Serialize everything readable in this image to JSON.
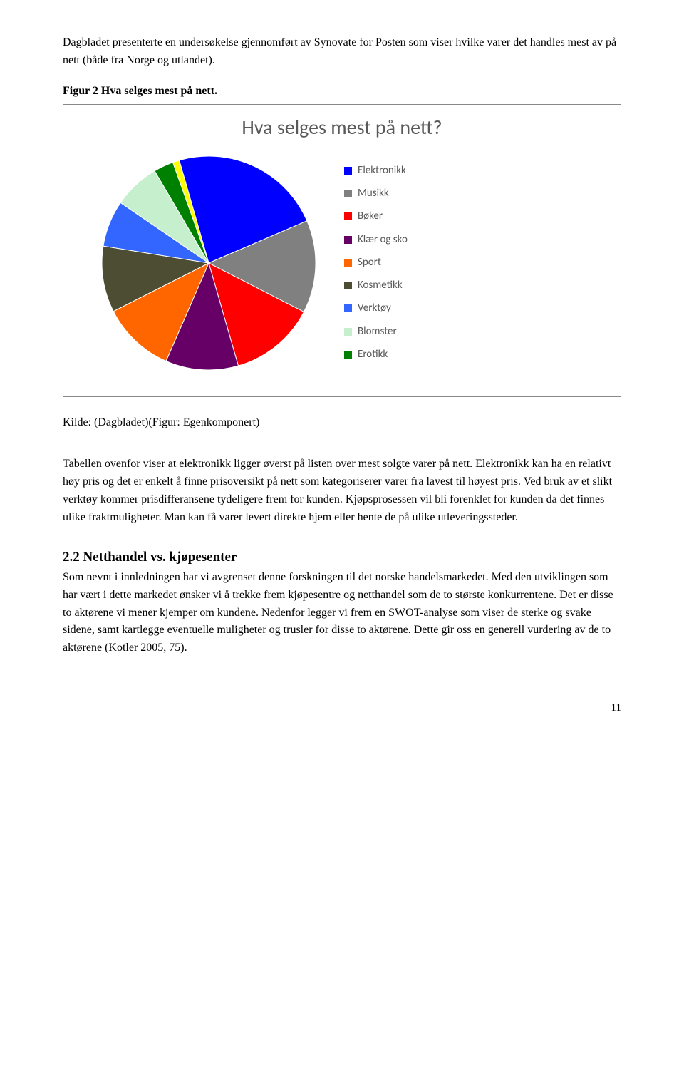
{
  "intro_paragraph": "Dagbladet presenterte en undersøkelse gjennomført av Synovate for Posten som viser hvilke varer det handles mest av på nett (både fra Norge og utlandet).",
  "figure_caption": "Figur 2 Hva selges mest på nett.",
  "chart": {
    "type": "pie",
    "title": "Hva selges mest på nett?",
    "background_color": "#ffffff",
    "border_color": "#888888",
    "title_color": "#595959",
    "title_fontsize": 28,
    "legend_fontsize": 15,
    "legend_text_color": "#595959",
    "radius": 150,
    "slices": [
      {
        "label": "Elektronikk",
        "value": 23,
        "color": "#0000ff"
      },
      {
        "label": "Musikk",
        "value": 14,
        "color": "#808080"
      },
      {
        "label": "Bøker",
        "value": 13,
        "color": "#ff0000"
      },
      {
        "label": "Klær og sko",
        "value": 11,
        "color": "#660066"
      },
      {
        "label": "Sport",
        "value": 11,
        "color": "#ff6600"
      },
      {
        "label": "Kosmetikk",
        "value": 10,
        "color": "#4d4d33"
      },
      {
        "label": "Verktøy",
        "value": 7,
        "color": "#3366ff"
      },
      {
        "label": "Blomster",
        "value": 7,
        "color": "#c6efce"
      },
      {
        "label": "Erotikk",
        "value": 3,
        "color": "#008000"
      },
      {
        "label": "",
        "value": 1,
        "color": "#ffff00"
      }
    ]
  },
  "kilde_text": "Kilde: (Dagbladet)(Figur: Egenkomponert)",
  "analysis_paragraph": "Tabellen ovenfor viser at elektronikk ligger øverst på listen over mest solgte varer på nett. Elektronikk kan ha en relativt høy pris og det er enkelt å finne prisoversikt på nett som kategoriserer varer fra lavest til høyest pris. Ved bruk av et slikt verktøy kommer prisdifferansene tydeligere frem for kunden. Kjøpsprosessen vil bli forenklet for kunden da det finnes ulike fraktmuligheter. Man kan få varer levert direkte hjem eller hente de på ulike utleveringssteder.",
  "section_heading": "2.2 Netthandel vs. kjøpesenter",
  "section_body": "Som nevnt i innledningen har vi avgrenset denne forskningen til det norske handelsmarkedet. Med den utviklingen som har vært i dette markedet ønsker vi å trekke frem kjøpesentre og netthandel som de to største konkurrentene. Det er disse to aktørene vi mener kjemper om kundene. Nedenfor legger vi frem en SWOT-analyse som viser de sterke og svake sidene, samt kartlegge eventuelle muligheter og trusler for disse to aktørene. Dette gir oss en generell vurdering av de to aktørene (Kotler 2005, 75).",
  "page_number": "11"
}
